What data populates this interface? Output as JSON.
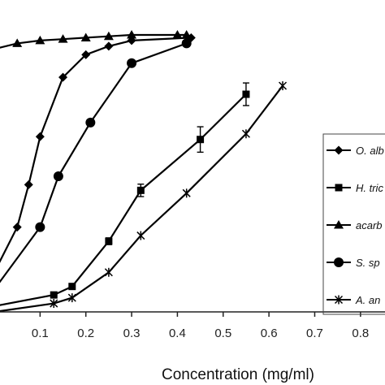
{
  "chart_data": {
    "type": "line",
    "title": "",
    "xlabel": "Concentration (mg/ml)",
    "ylabel": "",
    "xlim": [
      0.0,
      0.85
    ],
    "ylim": [
      0,
      100
    ],
    "x_ticks": [
      0.1,
      0.2,
      0.3,
      0.4,
      0.5,
      0.6,
      0.7,
      0.8
    ],
    "x_tick_labels": [
      "0.1",
      "0.2",
      "0.3",
      "0.4",
      "0.5",
      "0.6",
      "0.7",
      "0.8"
    ],
    "grid": false,
    "legend_position": "right",
    "series": [
      {
        "name": "O. alb",
        "marker": "diamond",
        "x": [
          0.0,
          0.05,
          0.075,
          0.1,
          0.15,
          0.2,
          0.25,
          0.3,
          0.43
        ],
        "y": [
          14,
          30,
          45,
          62,
          83,
          91,
          94,
          96,
          97
        ],
        "err": []
      },
      {
        "name": "H. tric",
        "marker": "square",
        "x": [
          0.0,
          0.13,
          0.17,
          0.25,
          0.32,
          0.45,
          0.55
        ],
        "y": [
          2,
          6,
          9,
          25,
          43,
          61,
          77
        ],
        "err": [
          0,
          0,
          0,
          1.2,
          2.2,
          4.5,
          4.0
        ]
      },
      {
        "name": "acarb",
        "marker": "triangle",
        "x": [
          0.0,
          0.05,
          0.1,
          0.15,
          0.2,
          0.25,
          0.3,
          0.4,
          0.42
        ],
        "y": [
          93,
          95,
          96,
          96.5,
          97,
          97.5,
          98,
          98,
          98
        ]
      },
      {
        "name": "S. sp",
        "marker": "circle",
        "x": [
          0.0,
          0.1,
          0.14,
          0.21,
          0.3,
          0.42
        ],
        "y": [
          8,
          30,
          48,
          67,
          88,
          95
        ]
      },
      {
        "name": "A. an",
        "marker": "star",
        "x": [
          0.0,
          0.13,
          0.17,
          0.25,
          0.32,
          0.42,
          0.55,
          0.63
        ],
        "y": [
          0,
          3,
          5,
          14,
          27,
          42,
          63,
          80
        ]
      }
    ]
  }
}
